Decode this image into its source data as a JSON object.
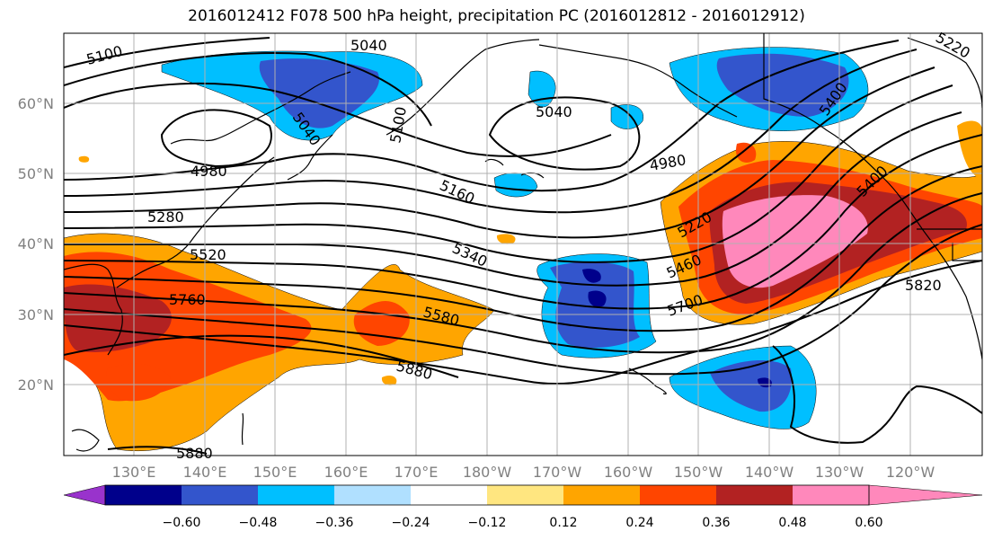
{
  "title": "2016012412 F078 500 hPa height, precipitation PC (2016012812 - 2016012912)",
  "map": {
    "lat_labels": [
      "60°N",
      "50°N",
      "40°N",
      "30°N",
      "20°N"
    ],
    "lon_labels": [
      "130°E",
      "140°E",
      "150°E",
      "160°E",
      "170°E",
      "180°W",
      "170°W",
      "160°W",
      "150°W",
      "140°W",
      "130°W",
      "120°W"
    ],
    "contour_labels": [
      "5100",
      "5040",
      "5040",
      "5100",
      "5040",
      "4980",
      "4980",
      "5160",
      "5280",
      "5520",
      "5340",
      "5220",
      "5400",
      "5460",
      "5760",
      "5580",
      "5700",
      "5880",
      "5820",
      "5880",
      "5400",
      "5220"
    ]
  },
  "colorbar": {
    "colors": [
      "#9933cc",
      "#00008b",
      "#3355cc",
      "#00bfff",
      "#b0e0ff",
      "#ffffff",
      "#ffe680",
      "#ffa500",
      "#ff4500",
      "#b22222",
      "#ff88bb"
    ],
    "tick_labels": [
      "−0.60",
      "−0.48",
      "−0.36",
      "−0.24",
      "−0.12",
      "0.12",
      "0.24",
      "0.36",
      "0.48",
      "0.60"
    ]
  }
}
